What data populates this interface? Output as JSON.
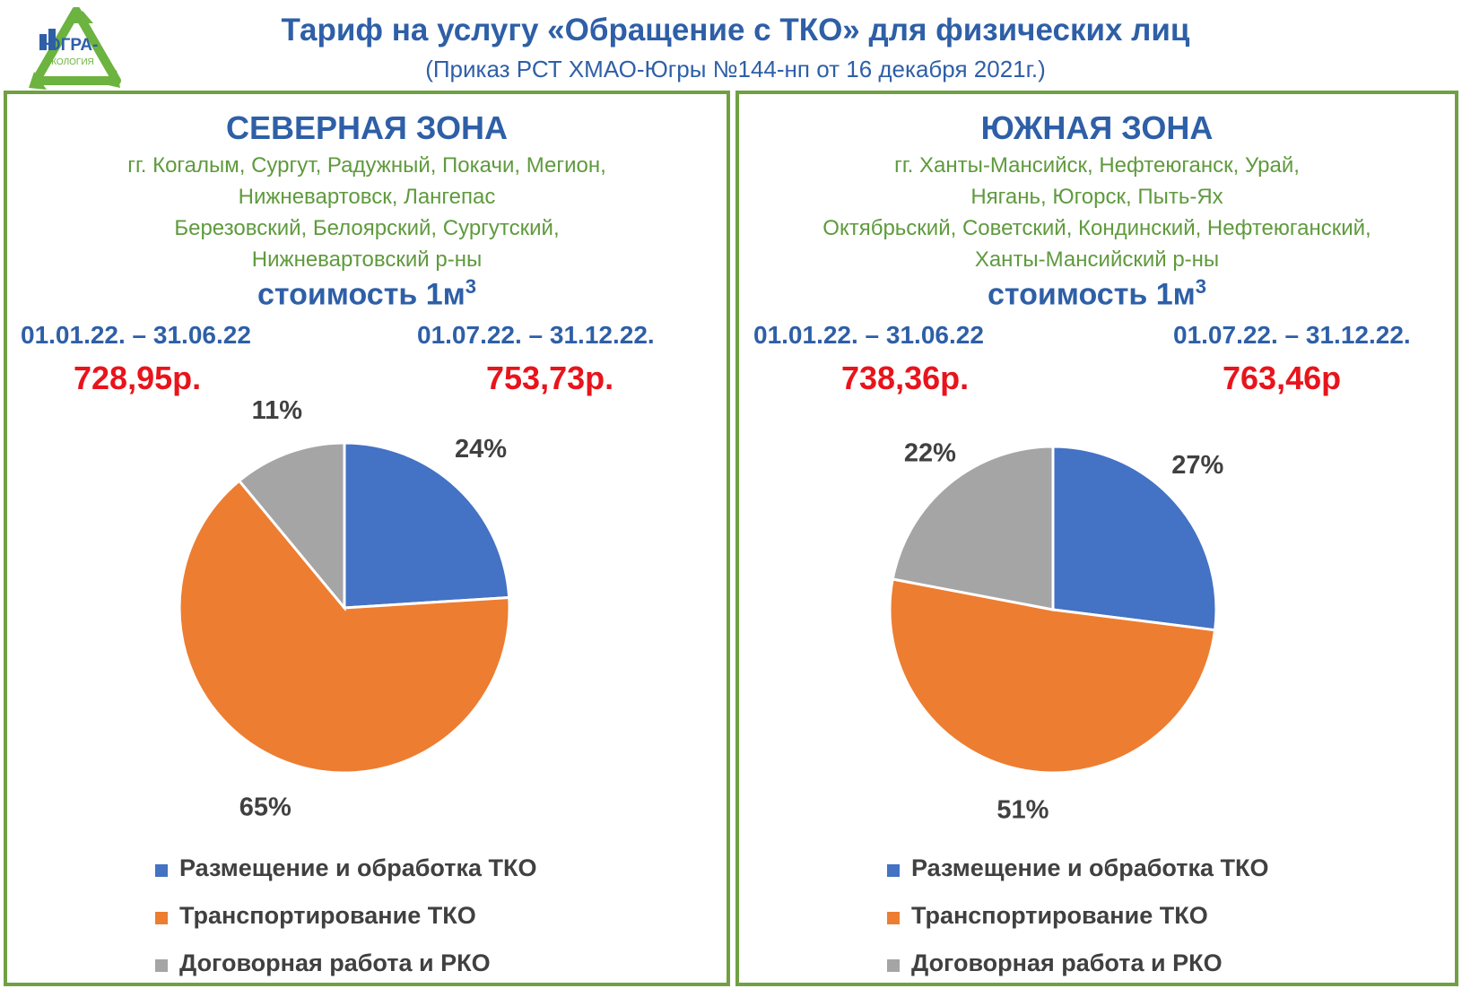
{
  "logo": {
    "text_top": "ЮГРА-",
    "text_bottom": "ЭКОЛОГИЯ"
  },
  "header": {
    "title": "Тариф на услугу «Обращение с ТКО» для физических лиц",
    "subtitle": "(Приказ РСТ ХМАО-Югры №144-нп от 16 декабря 2021г.)"
  },
  "colors": {
    "blue": "#4472c4",
    "orange": "#ed7d31",
    "gray": "#a5a5a5",
    "price_red": "#e8141c",
    "heading_blue": "#2e5fa7",
    "cities_green": "#5f9a3d",
    "border_green": "#70a043"
  },
  "zones": [
    {
      "title": "СЕВЕРНАЯ ЗОНА",
      "cities": [
        "гг. Когалым, Сургут, Радужный, Покачи, Мегион,",
        "Нижневартовск, Лангепас",
        "Березовский, Белоярский, Сургутский,",
        "Нижневартовский р-ны"
      ],
      "cost_label": "стоимость 1м",
      "cost_sup": "3",
      "periods": [
        {
          "label": "01.01.22. –  31.06.22",
          "price": "728,95р."
        },
        {
          "label": "01.07.22. – 31.12.22.",
          "price": "753,73р."
        }
      ]
    },
    {
      "title": "ЮЖНАЯ ЗОНА",
      "cities": [
        "гг. Ханты-Мансийск, Нефтеюганск, Урай,",
        "Нягань, Югорск, Пыть-Ях",
        "Октябрьский, Советский, Кондинский, Нефтеюганский,",
        "Ханты-Мансийский р-ны"
      ],
      "cost_label": "стоимость 1м",
      "cost_sup": "3",
      "periods": [
        {
          "label": "01.01.22. –  31.06.22",
          "price": "738,36р."
        },
        {
          "label": "01.07.22. – 31.12.22.",
          "price": "763,46р"
        }
      ]
    }
  ],
  "chart_data": [
    {
      "type": "pie",
      "categories": [
        "Размещение и обработка ТКО",
        "Транспортирование ТКО",
        "Договорная работа и РКО"
      ],
      "values": [
        24,
        65,
        11
      ],
      "labels": [
        "24%",
        "65%",
        "11%"
      ],
      "unit": "%",
      "colors": [
        "#4472c4",
        "#ed7d31",
        "#a5a5a5"
      ],
      "legend": "bottom"
    },
    {
      "type": "pie",
      "categories": [
        "Размещение и обработка ТКО",
        "Транспортирование ТКО",
        "Договорная работа и РКО"
      ],
      "values": [
        27,
        51,
        22
      ],
      "labels": [
        "27%",
        "51%",
        "22%"
      ],
      "unit": "%",
      "colors": [
        "#4472c4",
        "#ed7d31",
        "#a5a5a5"
      ],
      "legend": "bottom"
    }
  ]
}
